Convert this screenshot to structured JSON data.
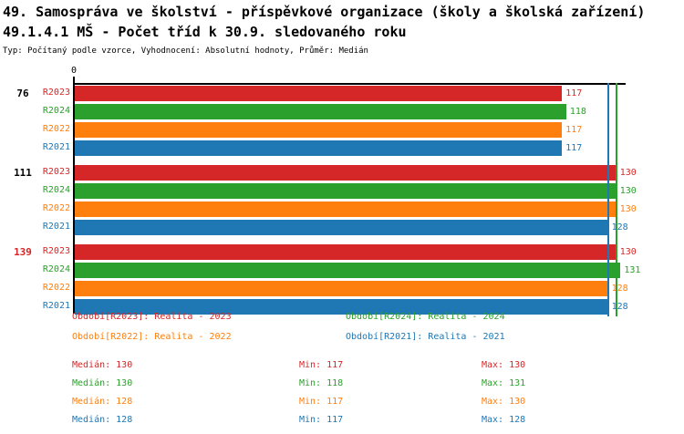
{
  "header": {
    "title": "49. Samospráva ve školství - příspěvkové organizace (školy a školská zařízení)",
    "subtitle": "49.1.4.1 MŠ - Počet tříd k 30.9. sledovaného roku",
    "meta": "Typ: Počítaný podle vzorce, Vyhodnocení: Absolutní hodnoty, Průměr: Medián"
  },
  "chart_data": {
    "type": "bar",
    "orientation": "horizontal",
    "title": "49.1.4.1 MŠ - Počet tříd k 30.9. sledovaného roku",
    "xlabel": "",
    "ylabel": "",
    "axis_zero_label": "0",
    "xlim": [
      0,
      146
    ],
    "grid": false,
    "row_order": [
      "R2023",
      "R2024",
      "R2022",
      "R2021"
    ],
    "series_colors": {
      "R2023": "#d62728",
      "R2024": "#2ca02c",
      "R2022": "#ff7f0e",
      "R2021": "#1f77b4"
    },
    "groups": [
      {
        "label": "76",
        "label_color": "#000000",
        "bars": [
          {
            "series": "R2023",
            "value": 117,
            "color": "#d62728"
          },
          {
            "series": "R2024",
            "value": 118,
            "color": "#2ca02c"
          },
          {
            "series": "R2022",
            "value": 117,
            "color": "#ff7f0e"
          },
          {
            "series": "R2021",
            "value": 117,
            "color": "#1f77b4"
          }
        ]
      },
      {
        "label": "111",
        "label_color": "#000000",
        "bars": [
          {
            "series": "R2023",
            "value": 130,
            "color": "#d62728"
          },
          {
            "series": "R2024",
            "value": 130,
            "color": "#2ca02c"
          },
          {
            "series": "R2022",
            "value": 130,
            "color": "#ff7f0e"
          },
          {
            "series": "R2021",
            "value": 128,
            "color": "#1f77b4"
          }
        ]
      },
      {
        "label": "139",
        "label_color": "#d62728",
        "bars": [
          {
            "series": "R2023",
            "value": 130,
            "color": "#d62728"
          },
          {
            "series": "R2024",
            "value": 131,
            "color": "#2ca02c"
          },
          {
            "series": "R2022",
            "value": 128,
            "color": "#ff7f0e"
          },
          {
            "series": "R2021",
            "value": 128,
            "color": "#1f77b4"
          }
        ]
      }
    ],
    "median_lines": [
      {
        "value": 130,
        "color": "#2ca02c"
      },
      {
        "value": 128,
        "color": "#1f77b4"
      }
    ]
  },
  "legend": {
    "items": [
      {
        "label": "Období[R2023]: Realita - 2023",
        "color": "#d62728"
      },
      {
        "label": "Období[R2024]: Realita - 2024",
        "color": "#2ca02c"
      },
      {
        "label": "Období[R2022]: Realita - 2022",
        "color": "#ff7f0e"
      },
      {
        "label": "Období[R2021]: Realita - 2021",
        "color": "#1f77b4"
      }
    ]
  },
  "stats": {
    "rows": [
      {
        "color": "#d62728",
        "median": "Medián: 130",
        "min": "Min: 117",
        "max": "Max: 130"
      },
      {
        "color": "#2ca02c",
        "median": "Medián: 130",
        "min": "Min: 118",
        "max": "Max: 131"
      },
      {
        "color": "#ff7f0e",
        "median": "Medián: 128",
        "min": "Min: 117",
        "max": "Max: 130"
      },
      {
        "color": "#1f77b4",
        "median": "Medián: 128",
        "min": "Min: 117",
        "max": "Max: 128"
      }
    ]
  }
}
